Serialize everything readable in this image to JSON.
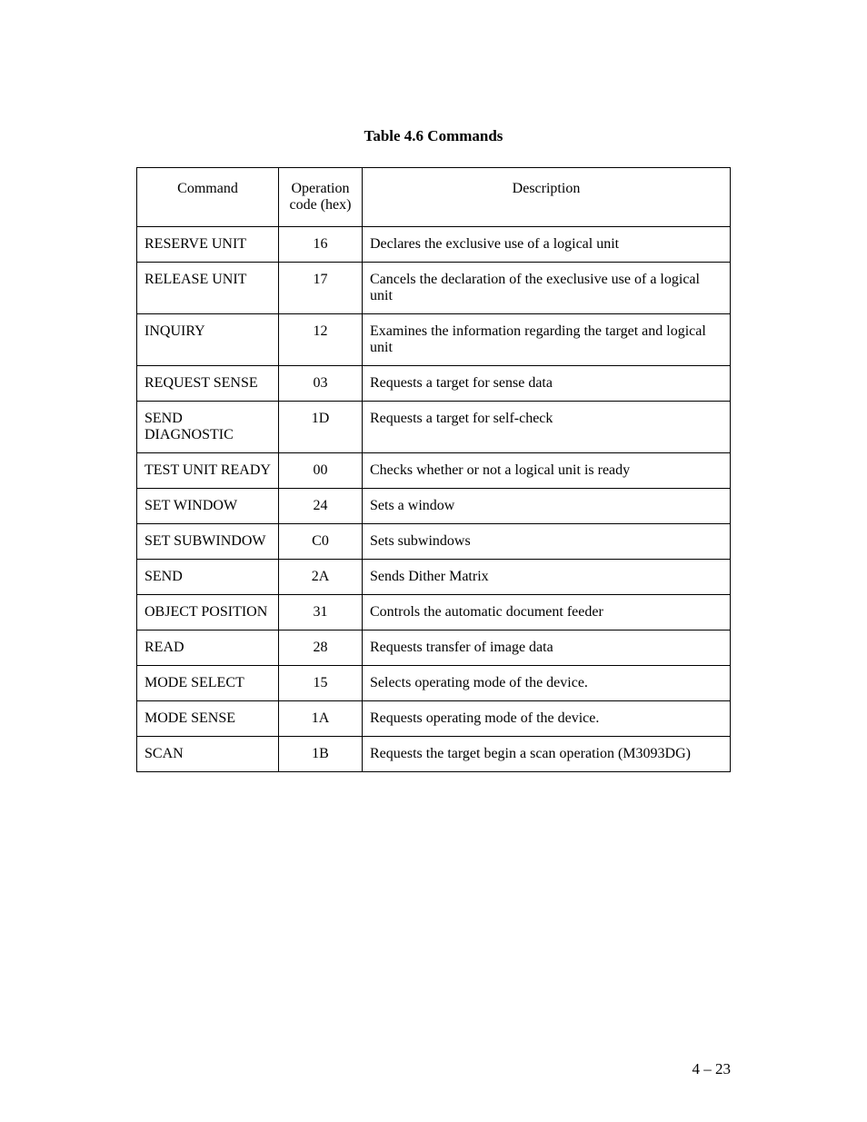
{
  "caption": "Table 4.6   Commands",
  "columns": [
    "Command",
    "Operation code (hex)",
    "Description"
  ],
  "rows": [
    {
      "command": "RESERVE UNIT",
      "code": "16",
      "desc": "Declares the exclusive use of a logical unit"
    },
    {
      "command": "RELEASE UNIT",
      "code": "17",
      "desc": "Cancels the declaration of the execlusive use of a logical unit"
    },
    {
      "command": "INQUIRY",
      "code": "12",
      "desc": "Examines the information regarding the target and logical unit"
    },
    {
      "command": "REQUEST SENSE",
      "code": "03",
      "desc": "Requests a target for sense data"
    },
    {
      "command": "SEND DIAGNOSTIC",
      "code": "1D",
      "desc": "Requests a target for self-check"
    },
    {
      "command": "TEST UNIT READY",
      "code": "00",
      "desc": "Checks whether or not a logical unit is ready"
    },
    {
      "command": "SET WINDOW",
      "code": "24",
      "desc": "Sets a window"
    },
    {
      "command": "SET SUBWINDOW",
      "code": "C0",
      "desc": "Sets subwindows"
    },
    {
      "command": "SEND",
      "code": "2A",
      "desc": "Sends Dither Matrix"
    },
    {
      "command": "OBJECT POSITION",
      "code": "31",
      "desc": "Controls the automatic document feeder"
    },
    {
      "command": "READ",
      "code": "28",
      "desc": "Requests transfer of image data"
    },
    {
      "command": "MODE SELECT",
      "code": "15",
      "desc": "Selects operating mode of the device."
    },
    {
      "command": "MODE SENSE",
      "code": "1A",
      "desc": "Requests operating mode of the device."
    },
    {
      "command": "SCAN",
      "code": "1B",
      "desc": "Requests the target begin a scan operation (M3093DG)"
    }
  ],
  "page_number": "4 – 23"
}
